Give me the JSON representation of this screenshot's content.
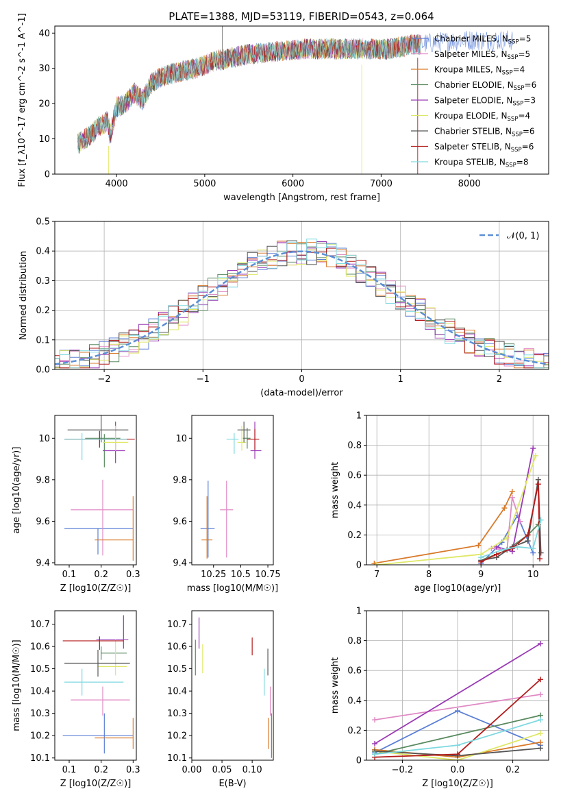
{
  "figure": {
    "title": "PLATE=1388, MJD=53119, FIBERID=0543, z=0.064"
  },
  "colors": {
    "Chabrier MILES": "#5b7fd6",
    "Salpeter MILES": "#e08ac4",
    "Kroupa MILES": "#d97a2b",
    "Chabrier ELODIE": "#5a8a60",
    "Salpeter ELODIE": "#9a3ab5",
    "Kroupa ELODIE": "#dfe866",
    "Chabrier STELIB": "#555555",
    "Salpeter STELIB": "#b41c1c",
    "Kroupa STELIB": "#7fd9e0",
    "normal": "#5b8fd6",
    "grid": "#b0b0b0"
  },
  "chart_data": [
    {
      "id": "spectrum",
      "type": "line",
      "title": "PLATE=1388, MJD=53119, FIBERID=0543, z=0.064",
      "xlabel": "wavelength [Angstrom, rest frame]",
      "ylabel": "Flux [f_λ10^-17 erg cm^-2 s^-1 A^-1]",
      "xlim": [
        3300,
        8900
      ],
      "ylim": [
        0,
        42
      ],
      "xticks": [
        4000,
        5000,
        6000,
        7000,
        8000
      ],
      "yticks": [
        0,
        10,
        20,
        30,
        40
      ],
      "grid": false,
      "legend": "right",
      "continuum": {
        "x": [
          3560,
          3700,
          3800,
          3900,
          3930,
          4000,
          4100,
          4200,
          4300,
          4400,
          4500,
          4700,
          4900,
          5100,
          5300,
          5500,
          5700,
          5900,
          6100,
          6300,
          6500,
          6700,
          6900,
          7100,
          7300,
          7500,
          7700,
          7900,
          8100,
          8300,
          8500
        ],
        "y": [
          8.5,
          11,
          13.5,
          15,
          11,
          19,
          20,
          23,
          21,
          26,
          27.5,
          29,
          30,
          32,
          33,
          34,
          34.5,
          35,
          35.5,
          35.5,
          35.5,
          35.5,
          35.5,
          35.5,
          36.5,
          37,
          37.5,
          38,
          38,
          38,
          38
        ]
      },
      "series": [
        {
          "name": "Chabrier MILES",
          "nssp": "5"
        },
        {
          "name": "Salpeter MILES",
          "nssp": "5"
        },
        {
          "name": "Kroupa MILES",
          "nssp": "4"
        },
        {
          "name": "Chabrier ELODIE",
          "nssp": "6"
        },
        {
          "name": "Salpeter ELODIE",
          "nssp": "3"
        },
        {
          "name": "Kroupa ELODIE",
          "nssp": "4"
        },
        {
          "name": "Chabrier STELIB",
          "nssp": "6"
        },
        {
          "name": "Salpeter STELIB",
          "nssp": "6"
        },
        {
          "name": "Kroupa STELIB",
          "nssp": "8"
        }
      ]
    },
    {
      "id": "residuals",
      "type": "line",
      "xlabel": "(data-model)/error",
      "ylabel": "Normed distribution",
      "xlim": [
        -2.5,
        2.5
      ],
      "ylim": [
        0,
        0.5
      ],
      "xticks": [
        -2,
        -1,
        0,
        1,
        2
      ],
      "xticklabels": [
        "−2",
        "−1",
        "0",
        "1",
        "2"
      ],
      "yticks": [
        0.0,
        0.1,
        0.2,
        0.3,
        0.4,
        0.5
      ],
      "yticklabels": [
        "0.0",
        "0.1",
        "0.2",
        "0.3",
        "0.4",
        "0.5"
      ],
      "grid": true,
      "legend": "top-right",
      "reference": {
        "name": "𝒩(0, 1)",
        "mean": 0,
        "sigma": 1
      },
      "bin_width": 0.1
    },
    {
      "id": "age-vs-Z",
      "type": "scatter",
      "xlabel": "Z [log10(Z/Z☉)]",
      "ylabel": "age [log10(age/yr)]",
      "xlim": [
        0.055,
        0.31
      ],
      "ylim": [
        9.39,
        10.11
      ],
      "xticks": [
        0.1,
        0.2,
        0.3
      ],
      "yticks": [
        9.4,
        9.6,
        9.8,
        10.0
      ],
      "points": [
        {
          "series": "Chabrier MILES",
          "x": 0.19,
          "y": 9.565,
          "xerr": [
            0.105,
            0.11
          ],
          "yerr": [
            0.125,
            0.0
          ]
        },
        {
          "series": "Salpeter MILES",
          "x": 0.205,
          "y": 9.655,
          "xerr": [
            0.1,
            0.095
          ],
          "yerr": [
            0.22,
            0.145
          ]
        },
        {
          "series": "Kroupa MILES",
          "x": 0.3,
          "y": 9.51,
          "xerr": [
            0.12,
            0.0
          ],
          "yerr": [
            0.1,
            0.21
          ]
        },
        {
          "series": "Chabrier ELODIE",
          "x": 0.21,
          "y": 10.0,
          "xerr": [
            0.06,
            0.05
          ],
          "yerr": [
            0.14,
            0.02
          ]
        },
        {
          "series": "Salpeter ELODIE",
          "x": 0.245,
          "y": 9.94,
          "xerr": [
            0.04,
            0.03
          ],
          "yerr": [
            0.06,
            0.14
          ]
        },
        {
          "series": "Kroupa ELODIE",
          "x": 0.245,
          "y": 9.98,
          "xerr": [
            0.04,
            0.04
          ],
          "yerr": [
            0.04,
            0.08
          ]
        },
        {
          "series": "Chabrier STELIB",
          "x": 0.2,
          "y": 10.04,
          "xerr": [
            0.105,
            0.085
          ],
          "yerr": [
            0.06,
            0.07
          ]
        },
        {
          "series": "Salpeter STELIB",
          "x": 0.195,
          "y": 9.995,
          "xerr": [
            0.11,
            0.11
          ],
          "yerr": [
            0.04,
            0.04
          ]
        },
        {
          "series": "Kroupa STELIB",
          "x": 0.14,
          "y": 9.995,
          "xerr": [
            0.055,
            0.14
          ],
          "yerr": [
            0.1,
            0.03
          ]
        }
      ]
    },
    {
      "id": "age-vs-mass",
      "type": "scatter",
      "xlabel": "mass [log10(M/M☉)]",
      "ylabel": "",
      "xlim": [
        10.05,
        10.8
      ],
      "ylim": [
        9.39,
        10.11
      ],
      "xticks": [
        10.25,
        10.5,
        10.75
      ],
      "yticks": [
        9.4,
        9.6,
        9.8,
        10.0
      ],
      "points": [
        {
          "series": "Chabrier MILES",
          "x": 10.2,
          "y": 9.565,
          "xerr": [
            0.07,
            0.06
          ],
          "yerr": [
            0.14,
            0.23
          ]
        },
        {
          "series": "Salpeter MILES",
          "x": 10.37,
          "y": 9.655,
          "xerr": [
            0.06,
            0.06
          ],
          "yerr": [
            0.23,
            0.14
          ]
        },
        {
          "series": "Kroupa MILES",
          "x": 10.19,
          "y": 9.51,
          "xerr": [
            0.05,
            0.05
          ],
          "yerr": [
            0.09,
            0.21
          ]
        },
        {
          "series": "Chabrier ELODIE",
          "x": 10.56,
          "y": 10.0,
          "xerr": [
            0.04,
            0.03
          ],
          "yerr": [
            0.05,
            0.05
          ]
        },
        {
          "series": "Salpeter ELODIE",
          "x": 10.63,
          "y": 9.94,
          "xerr": [
            0.04,
            0.06
          ],
          "yerr": [
            0.04,
            0.14
          ]
        },
        {
          "series": "Kroupa ELODIE",
          "x": 10.51,
          "y": 9.98,
          "xerr": [
            0.04,
            0.04
          ],
          "yerr": [
            0.04,
            0.08
          ]
        },
        {
          "series": "Chabrier STELIB",
          "x": 10.53,
          "y": 10.04,
          "xerr": [
            0.06,
            0.06
          ],
          "yerr": [
            0.06,
            0.04
          ]
        },
        {
          "series": "Salpeter STELIB",
          "x": 10.63,
          "y": 9.995,
          "xerr": [
            0.07,
            0.04
          ],
          "yerr": [
            0.05,
            0.05
          ]
        },
        {
          "series": "Kroupa STELIB",
          "x": 10.44,
          "y": 9.995,
          "xerr": [
            0.07,
            0.04
          ],
          "yerr": [
            0.07,
            0.03
          ]
        }
      ]
    },
    {
      "id": "weight-vs-age",
      "type": "line",
      "xlabel": "age [log10(age/yr)]",
      "ylabel": "mass weight",
      "xlim": [
        6.8,
        10.3
      ],
      "ylim": [
        0,
        1
      ],
      "xticks": [
        7,
        8,
        9,
        10
      ],
      "yticks": [
        0.0,
        0.2,
        0.4,
        0.6,
        0.8,
        1.0
      ],
      "grid": true,
      "series": [
        {
          "name": "Chabrier MILES",
          "x": [
            9.0,
            9.4,
            9.7,
            10.0
          ],
          "y": [
            0.01,
            0.15,
            0.33,
            0.08
          ]
        },
        {
          "name": "Salpeter MILES",
          "x": [
            9.2,
            9.5,
            9.6,
            9.75
          ],
          "y": [
            0.11,
            0.1,
            0.45,
            0.29
          ]
        },
        {
          "name": "Kroupa MILES",
          "x": [
            6.95,
            8.95,
            9.45,
            9.6
          ],
          "y": [
            0.01,
            0.13,
            0.38,
            0.49
          ]
        },
        {
          "name": "Chabrier ELODIE",
          "x": [
            9.0,
            9.5,
            9.9,
            10.1
          ],
          "y": [
            0.03,
            0.1,
            0.2,
            0.27
          ]
        },
        {
          "name": "Salpeter ELODIE",
          "x": [
            9.3,
            9.6,
            10.0
          ],
          "y": [
            0.12,
            0.09,
            0.78
          ]
        },
        {
          "name": "Kroupa ELODIE",
          "x": [
            7.0,
            9.0,
            9.5,
            10.05
          ],
          "y": [
            0.0,
            0.07,
            0.18,
            0.73
          ]
        },
        {
          "name": "Chabrier STELIB",
          "x": [
            9.0,
            9.3,
            9.6,
            9.9,
            10.1,
            10.15
          ],
          "y": [
            0.03,
            0.05,
            0.12,
            0.16,
            0.57,
            0.08
          ]
        },
        {
          "name": "Salpeter STELIB",
          "x": [
            9.0,
            9.3,
            9.6,
            9.9,
            10.1,
            10.13
          ],
          "y": [
            0.02,
            0.07,
            0.11,
            0.2,
            0.54,
            0.04
          ]
        },
        {
          "name": "Kroupa STELIB",
          "x": [
            9.0,
            9.4,
            9.7,
            10.0,
            10.15
          ],
          "y": [
            0.05,
            0.1,
            0.12,
            0.11,
            0.3
          ]
        }
      ]
    },
    {
      "id": "mass-vs-Z",
      "type": "scatter",
      "xlabel": "Z [log10(Z/Z☉)]",
      "ylabel": "mass [log10(M/M☉)]",
      "xlim": [
        0.055,
        0.31
      ],
      "ylim": [
        10.09,
        10.76
      ],
      "xticks": [
        0.1,
        0.2,
        0.3
      ],
      "yticks": [
        10.1,
        10.2,
        10.3,
        10.4,
        10.5,
        10.6,
        10.7
      ],
      "points": [
        {
          "series": "Chabrier MILES",
          "x": 0.21,
          "y": 10.2,
          "xerr": [
            0.13,
            0.09
          ],
          "yerr": [
            0.08,
            0.1
          ]
        },
        {
          "series": "Salpeter MILES",
          "x": 0.205,
          "y": 10.36,
          "xerr": [
            0.1,
            0.085
          ],
          "yerr": [
            0.07,
            0.06
          ]
        },
        {
          "series": "Kroupa MILES",
          "x": 0.3,
          "y": 10.19,
          "xerr": [
            0.12,
            0.0
          ],
          "yerr": [
            0.05,
            0.09
          ]
        },
        {
          "series": "Chabrier ELODIE",
          "x": 0.2,
          "y": 10.57,
          "xerr": [
            0.0,
            0.08
          ],
          "yerr": [
            0.03,
            0.03
          ]
        },
        {
          "series": "Salpeter ELODIE",
          "x": 0.27,
          "y": 10.63,
          "xerr": [
            0.085,
            0.015
          ],
          "yerr": [
            0.04,
            0.11
          ]
        },
        {
          "series": "Kroupa ELODIE",
          "x": 0.245,
          "y": 10.51,
          "xerr": [
            0.055,
            0.035
          ],
          "yerr": [
            0.04,
            0.12
          ]
        },
        {
          "series": "Chabrier STELIB",
          "x": 0.19,
          "y": 10.525,
          "xerr": [
            0.105,
            0.1
          ],
          "yerr": [
            0.06,
            0.06
          ]
        },
        {
          "series": "Salpeter STELIB",
          "x": 0.195,
          "y": 10.625,
          "xerr": [
            0.115,
            0.075
          ],
          "yerr": [
            0.04,
            0.02
          ]
        },
        {
          "series": "Kroupa STELIB",
          "x": 0.14,
          "y": 10.44,
          "xerr": [
            0.055,
            0.13
          ],
          "yerr": [
            0.06,
            0.06
          ]
        }
      ]
    },
    {
      "id": "mass-vs-EBV",
      "type": "scatter",
      "xlabel": "E(B-V)",
      "ylabel": "",
      "xlim": [
        0.0,
        0.135
      ],
      "ylim": [
        10.09,
        10.76
      ],
      "xticks": [
        0.0,
        0.05,
        0.1
      ],
      "xticklabels": [
        "0.00",
        "0.05",
        "0.10"
      ],
      "yticks": [
        10.1,
        10.2,
        10.3,
        10.4,
        10.5,
        10.6,
        10.7
      ],
      "points": [
        {
          "series": "Chabrier MILES",
          "x": 0.132,
          "y": 10.2,
          "yerr": [
            0.1,
            0.1
          ]
        },
        {
          "series": "Salpeter MILES",
          "x": 0.13,
          "y": 10.36,
          "yerr": [
            0.07,
            0.06
          ]
        },
        {
          "series": "Kroupa MILES",
          "x": 0.127,
          "y": 10.2,
          "yerr": [
            0.06,
            0.08
          ]
        },
        {
          "series": "Chabrier ELODIE",
          "x": 0.006,
          "y": 10.55,
          "yerr": [
            0.08,
            0.08
          ]
        },
        {
          "series": "Salpeter ELODIE",
          "x": 0.012,
          "y": 10.65,
          "yerr": [
            0.06,
            0.08
          ]
        },
        {
          "series": "Kroupa ELODIE",
          "x": 0.018,
          "y": 10.55,
          "yerr": [
            0.07,
            0.06
          ]
        },
        {
          "series": "Chabrier STELIB",
          "x": 0.126,
          "y": 10.53,
          "yerr": [
            0.06,
            0.06
          ]
        },
        {
          "series": "Salpeter STELIB",
          "x": 0.1,
          "y": 10.6,
          "yerr": [
            0.04,
            0.04
          ]
        },
        {
          "series": "Kroupa STELIB",
          "x": 0.12,
          "y": 10.44,
          "yerr": [
            0.06,
            0.06
          ]
        }
      ]
    },
    {
      "id": "weight-vs-Z",
      "type": "line",
      "xlabel": "Z [log10(Z/Z☉)]",
      "ylabel": "mass weight",
      "xlim": [
        -0.33,
        0.33
      ],
      "ylim": [
        0,
        1
      ],
      "xticks": [
        -0.2,
        0.0,
        0.2
      ],
      "xticklabels": [
        "−0.2",
        "0.0",
        "0.2"
      ],
      "yticks": [
        0.0,
        0.2,
        0.4,
        0.6,
        0.8,
        1.0
      ],
      "grid": true,
      "series": [
        {
          "name": "Chabrier MILES",
          "x": [
            -0.3,
            0.0,
            0.3
          ],
          "y": [
            0.05,
            0.33,
            0.1
          ]
        },
        {
          "name": "Salpeter MILES",
          "x": [
            -0.3,
            0.3
          ],
          "y": [
            0.27,
            0.44
          ]
        },
        {
          "name": "Kroupa MILES",
          "x": [
            -0.3,
            0.0,
            0.3
          ],
          "y": [
            0.07,
            0.02,
            0.12
          ]
        },
        {
          "name": "Chabrier ELODIE",
          "x": [
            -0.3,
            0.3
          ],
          "y": [
            0.04,
            0.3
          ]
        },
        {
          "name": "Salpeter ELODIE",
          "x": [
            -0.3,
            0.3
          ],
          "y": [
            0.11,
            0.78
          ]
        },
        {
          "name": "Kroupa ELODIE",
          "x": [
            -0.3,
            0.0,
            0.3
          ],
          "y": [
            0.06,
            0.0,
            0.18
          ]
        },
        {
          "name": "Chabrier STELIB",
          "x": [
            -0.3,
            0.0,
            0.3
          ],
          "y": [
            0.06,
            0.03,
            0.08
          ]
        },
        {
          "name": "Salpeter STELIB",
          "x": [
            -0.3,
            0.0,
            0.3
          ],
          "y": [
            0.02,
            0.04,
            0.54
          ]
        },
        {
          "name": "Kroupa STELIB",
          "x": [
            -0.3,
            0.0,
            0.3
          ],
          "y": [
            0.04,
            0.1,
            0.27
          ]
        }
      ]
    }
  ]
}
